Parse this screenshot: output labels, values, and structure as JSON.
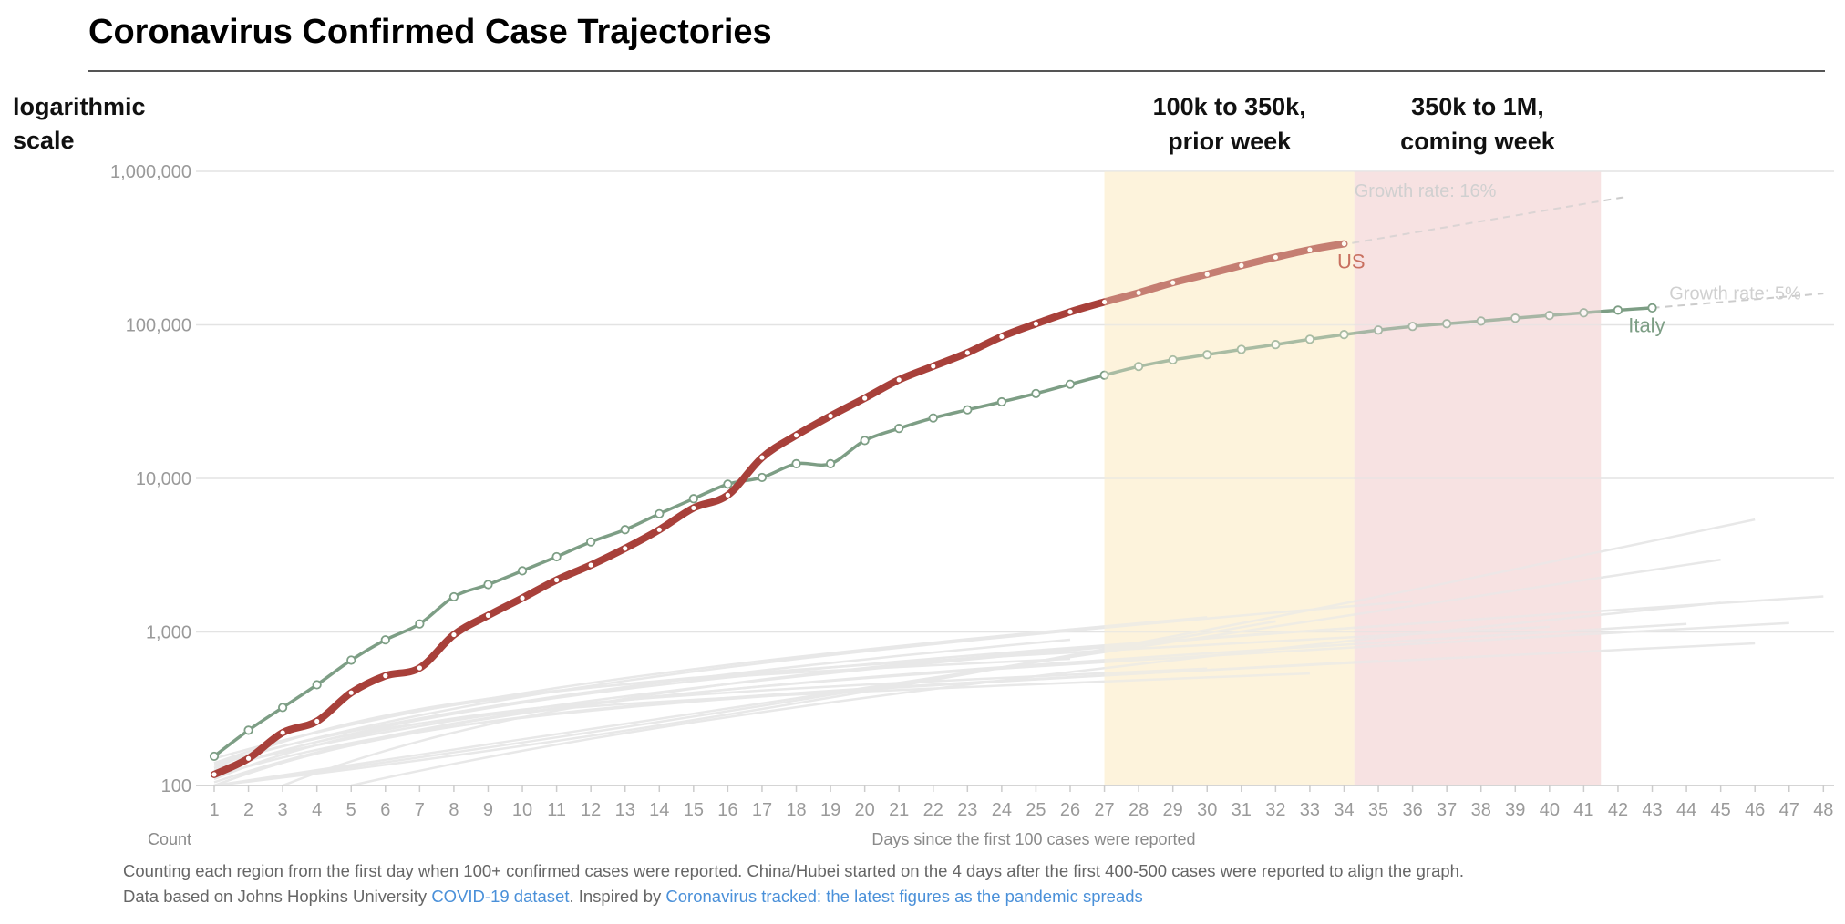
{
  "chart_data": {
    "type": "line",
    "title": "Coronavirus Confirmed Case Trajectories",
    "scale_label": [
      "logarithmic",
      "scale"
    ],
    "y_scale": "log",
    "ylim": [
      100,
      1000000
    ],
    "y_ticks": [
      100,
      1000,
      10000,
      100000,
      1000000
    ],
    "y_tick_labels": [
      "100",
      "1,000",
      "10,000",
      "100,000",
      "1,000,000"
    ],
    "xlim": [
      1,
      48
    ],
    "x_ticks": [
      1,
      2,
      3,
      4,
      5,
      6,
      7,
      8,
      9,
      10,
      11,
      12,
      13,
      14,
      15,
      16,
      17,
      18,
      19,
      20,
      21,
      22,
      23,
      24,
      25,
      26,
      27,
      28,
      29,
      30,
      31,
      32,
      33,
      34,
      35,
      36,
      37,
      38,
      39,
      40,
      41,
      42,
      43,
      44,
      45,
      46,
      47,
      48
    ],
    "x_count_label": "Count",
    "xlabel": "Days since the first 100 cases were reported",
    "grid": true,
    "bands": [
      {
        "label": [
          "100k to 350k,",
          "prior week"
        ],
        "x_start": 27,
        "x_end": 34.3,
        "color": "#fdf3dc"
      },
      {
        "label": [
          "350k to 1M,",
          "coming week"
        ],
        "x_start": 34.3,
        "x_end": 41.5,
        "color": "#f7e2e2"
      }
    ],
    "series": [
      {
        "name": "US",
        "color": "#a8403a",
        "x": [
          1,
          2,
          3,
          4,
          5,
          6,
          7,
          8,
          9,
          10,
          11,
          12,
          13,
          14,
          15,
          16,
          17,
          18,
          19,
          20,
          21,
          22,
          23,
          24,
          25,
          26,
          27,
          28,
          29,
          30,
          31,
          32,
          33,
          34
        ],
        "values": [
          118,
          150,
          221,
          262,
          402,
          518,
          583,
          959,
          1281,
          1663,
          2179,
          2727,
          3499,
          4632,
          6421,
          7786,
          13680,
          19101,
          25493,
          33276,
          43847,
          53740,
          65778,
          83836,
          101657,
          121478,
          140886,
          161807,
          188172,
          213372,
          243453,
          275586,
          308850,
          337072
        ]
      },
      {
        "name": "Italy",
        "color": "#7d9e85",
        "x": [
          1,
          2,
          3,
          4,
          5,
          6,
          7,
          8,
          9,
          10,
          11,
          12,
          13,
          14,
          15,
          16,
          17,
          18,
          19,
          20,
          21,
          22,
          23,
          24,
          25,
          26,
          27,
          28,
          29,
          30,
          31,
          32,
          33,
          34,
          35,
          36,
          37,
          38,
          39,
          40,
          41,
          42,
          43
        ],
        "values": [
          155,
          229,
          322,
          453,
          655,
          888,
          1128,
          1694,
          2036,
          2502,
          3089,
          3858,
          4636,
          5883,
          7375,
          9172,
          10149,
          12462,
          12462,
          17660,
          21157,
          24747,
          27980,
          31506,
          35713,
          41035,
          47021,
          53578,
          59138,
          63927,
          69176,
          74386,
          80589,
          86498,
          92472,
          97689,
          101739,
          105792,
          110574,
          115242,
          119827,
          124632,
          128948
        ]
      }
    ],
    "annotations": [
      {
        "text": "Growth rate: 16%",
        "x": 34.3,
        "y": 760000,
        "series": "US",
        "trend_x": [
          33.5,
          42.2
        ],
        "trend_y": [
          320000,
          680000
        ]
      },
      {
        "text": "US",
        "x": 33.8,
        "y": 260000
      },
      {
        "text": "Growth rate: 5%",
        "x": 43.5,
        "y": 163000,
        "series": "Italy",
        "trend_x": [
          43,
          48
        ],
        "trend_y": [
          128948,
          160000
        ]
      },
      {
        "text": "Italy",
        "x": 42.3,
        "y": 100000
      }
    ],
    "background_series_color": "#e8e8e8"
  },
  "footnotes": {
    "line1": "Counting each region from the first day when 100+ confirmed cases  were reported. China/Hubei started on the 4 days after the first 400-500 cases were reported to align the graph.",
    "line2_prefix": "Data based on Johns Hopkins University ",
    "line2_link1": "COVID-19 dataset",
    "line2_mid": ". Inspired by ",
    "line2_link2": "Coronavirus tracked: the latest figures as the pandemic spreads"
  }
}
